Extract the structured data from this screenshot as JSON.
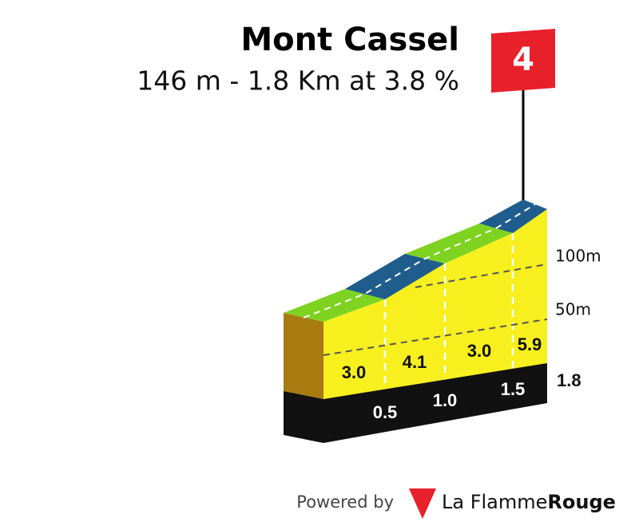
{
  "header": {
    "title": "Mont Cassel",
    "subtitle": "146 m - 1.8 Km at 3.8 %"
  },
  "flag": {
    "label": "4"
  },
  "profile": {
    "gradients": [
      "3.0",
      "4.1",
      "3.0",
      "5.9"
    ],
    "altitude_labels": [
      "100m",
      "50m"
    ],
    "distance_labels": [
      "0.5",
      "1.0",
      "1.5",
      "1.8"
    ]
  },
  "footer": {
    "powered_by": "Powered by",
    "brand_light": "La Flamme",
    "brand_bold": "Rouge"
  }
}
